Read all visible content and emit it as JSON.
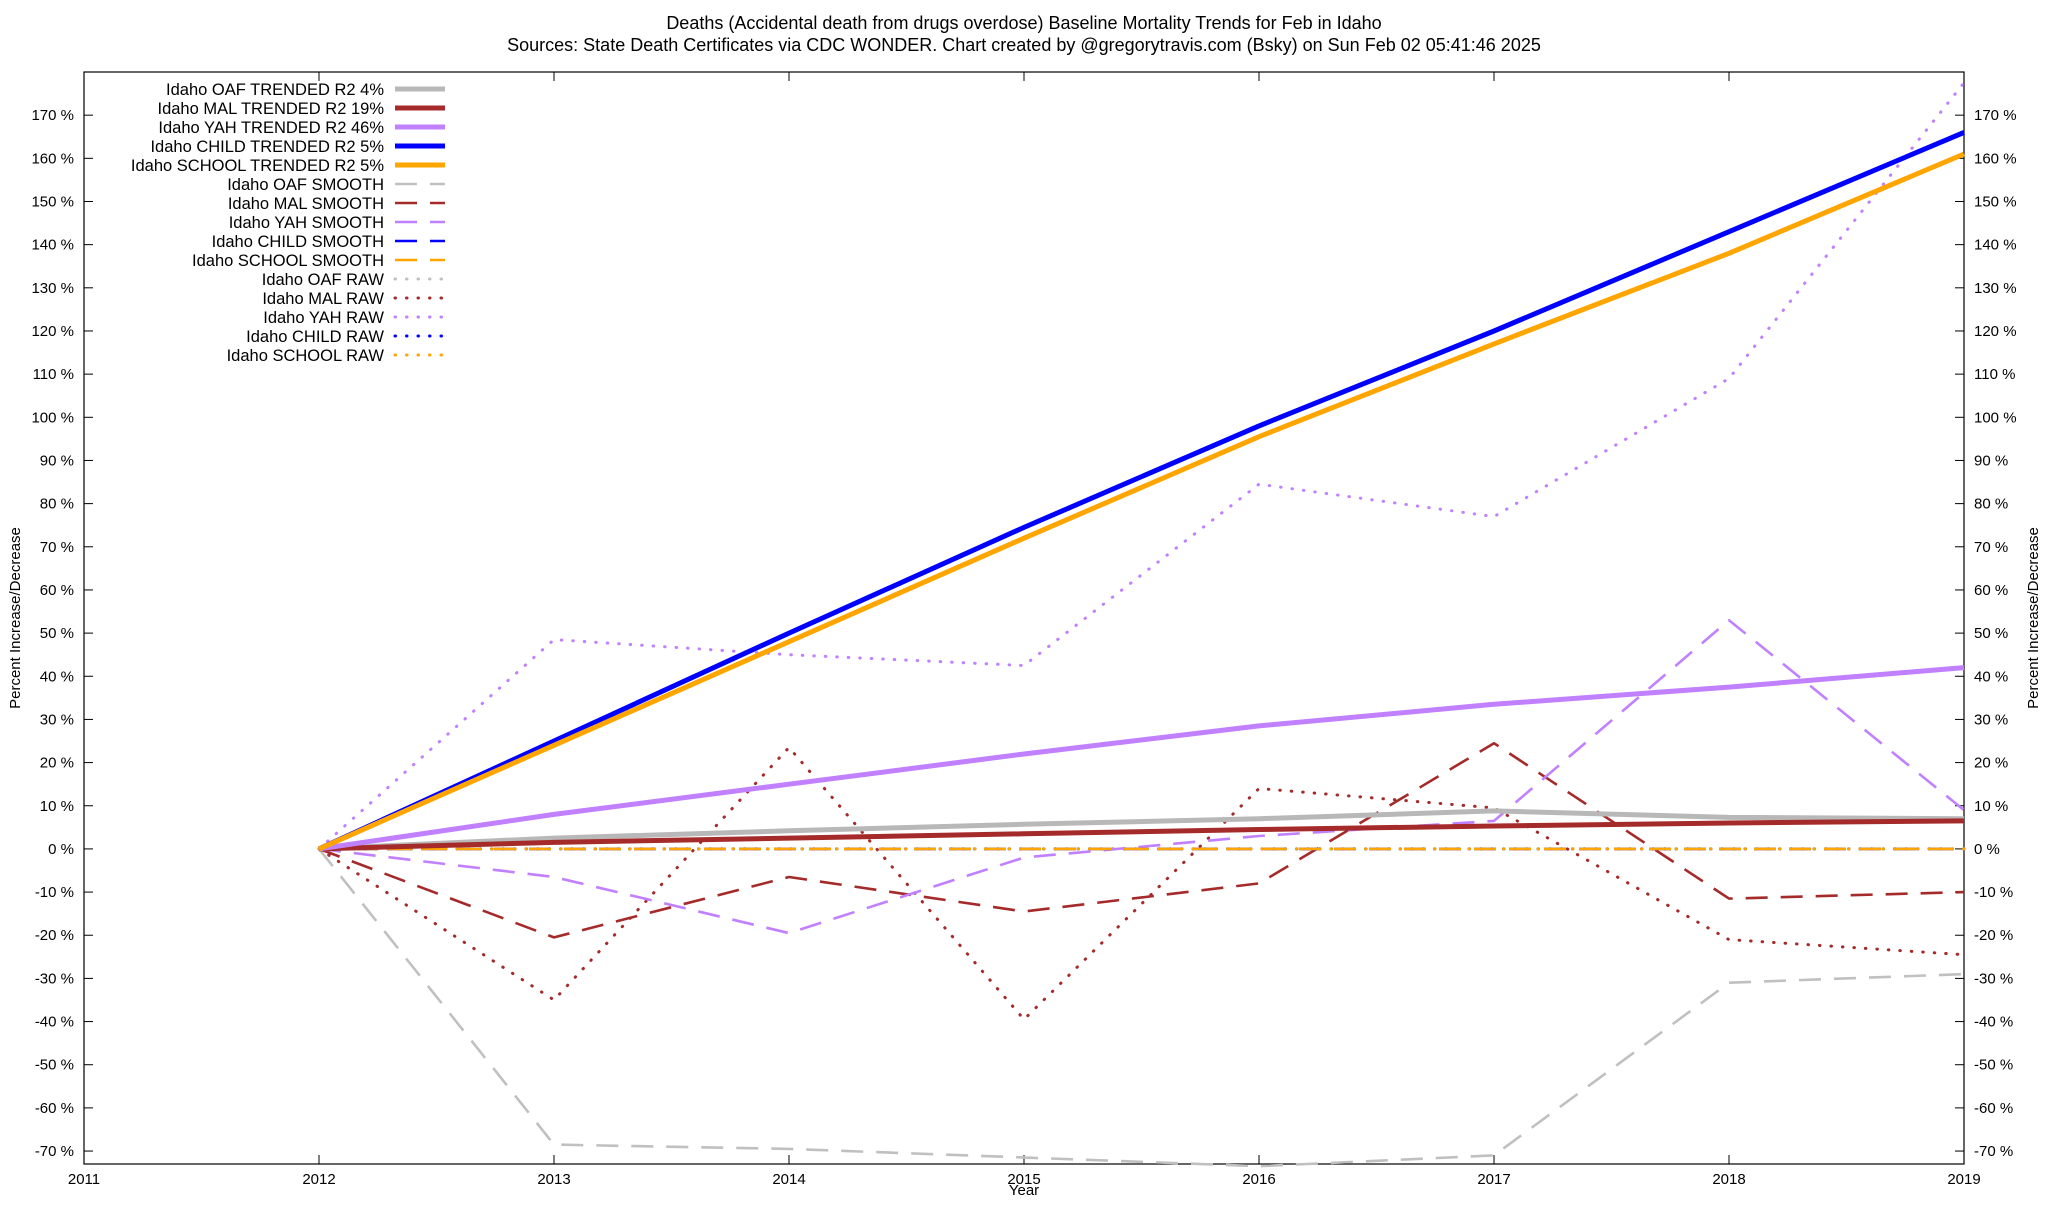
{
  "chart_data": {
    "type": "line",
    "title_line1": "Deaths (Accidental death from drugs overdose)  Baseline Mortality Trends for Feb in Idaho",
    "title_line2": "Sources: State Death Certificates via CDC WONDER.               Chart created by @gregorytravis.com (Bsky) on Sun Feb 02 05:41:46 2025",
    "xlabel": "Year",
    "ylabel_left": "Percent Increase/Decrease",
    "ylabel_right": "Percent Increase/Decrease",
    "xlim": [
      2011,
      2019
    ],
    "ylim": [
      -73,
      180
    ],
    "x_ticks": [
      2011,
      2012,
      2013,
      2014,
      2015,
      2016,
      2017,
      2018,
      2019
    ],
    "x_tick_labels": [
      "2011",
      "2012",
      "2013",
      "2014",
      "2015",
      "2016",
      "2017",
      "2018",
      "2019"
    ],
    "y_ticks": [
      -70,
      -60,
      -50,
      -40,
      -30,
      -20,
      -10,
      0,
      10,
      20,
      30,
      40,
      50,
      60,
      70,
      80,
      90,
      100,
      110,
      120,
      130,
      140,
      150,
      160,
      170
    ],
    "y_tick_labels": [
      "-70 %",
      "-60 %",
      "-50 %",
      "-40 %",
      "-30 %",
      "-20 %",
      "-10 %",
      "0 %",
      "10 %",
      "20 %",
      "30 %",
      "40 %",
      "50 %",
      "60 %",
      "70 %",
      "80 %",
      "90 %",
      "100 %",
      "110 %",
      "120 %",
      "130 %",
      "140 %",
      "150 %",
      "160 %",
      "170 %"
    ],
    "grid": false,
    "legend_position": "top-left",
    "x": [
      2012,
      2013,
      2014,
      2015,
      2016,
      2017,
      2018,
      2019
    ],
    "series": [
      {
        "name": "Idaho OAF TRENDED R2   4%",
        "style": "solid",
        "color": "#b8b8b8",
        "values": [
          0,
          2.5,
          4.2,
          5.7,
          7,
          8.8,
          7.3,
          7
        ]
      },
      {
        "name": "Idaho MAL TRENDED R2  19%",
        "style": "solid",
        "color": "#a52a2a",
        "values": [
          0,
          1.5,
          2.5,
          3.5,
          4.5,
          5.3,
          6.0,
          6.5
        ]
      },
      {
        "name": "Idaho YAH TRENDED R2  46%",
        "style": "solid",
        "color": "#c080ff",
        "values": [
          0,
          8,
          15,
          22,
          28.5,
          33.5,
          37.5,
          42
        ]
      },
      {
        "name": "Idaho CHILD TRENDED R2   5%",
        "style": "solid",
        "color": "#0000ff",
        "values": [
          0,
          25,
          50,
          74.5,
          98,
          120,
          143,
          166
        ]
      },
      {
        "name": "Idaho SCHOOL TRENDED R2   5%",
        "style": "solid",
        "color": "#ffa500",
        "values": [
          0,
          24,
          48,
          72,
          95.5,
          117,
          138,
          161
        ]
      },
      {
        "name": "Idaho OAF SMOOTH",
        "style": "dash",
        "color": "#c0c0c0",
        "values": [
          0,
          -68.5,
          -69.5,
          -71.5,
          -73.5,
          -71,
          -31,
          -29
        ]
      },
      {
        "name": "Idaho MAL SMOOTH",
        "style": "dash",
        "color": "#a52a2a",
        "values": [
          0,
          -20.5,
          -6.5,
          -14.5,
          -8,
          24.5,
          -11.5,
          -10
        ]
      },
      {
        "name": "Idaho YAH SMOOTH",
        "style": "dash",
        "color": "#c080ff",
        "values": [
          0,
          -6.5,
          -19.5,
          -2,
          3,
          6.5,
          53,
          9
        ]
      },
      {
        "name": "Idaho CHILD SMOOTH",
        "style": "dash",
        "color": "#0000ff",
        "values": [
          0,
          0,
          0,
          0,
          0,
          0,
          0,
          0
        ]
      },
      {
        "name": "Idaho SCHOOL SMOOTH",
        "style": "dash",
        "color": "#ffa500",
        "values": [
          0,
          0,
          0,
          0,
          0,
          0,
          0,
          0
        ]
      },
      {
        "name": "Idaho OAF RAW",
        "style": "dot",
        "color": "#c0c0c0",
        "values": [
          0,
          0,
          0,
          0,
          0,
          0,
          0,
          0
        ]
      },
      {
        "name": "Idaho MAL RAW",
        "style": "dot",
        "color": "#a52a2a",
        "values": [
          0,
          -35,
          23.5,
          -39.5,
          14,
          9.5,
          -21,
          -24.5
        ]
      },
      {
        "name": "Idaho YAH RAW",
        "style": "dot",
        "color": "#c080ff",
        "values": [
          0,
          48.5,
          45,
          42.5,
          84.5,
          77,
          109,
          177.5
        ]
      },
      {
        "name": "Idaho CHILD RAW",
        "style": "dot",
        "color": "#0000ff",
        "values": [
          0,
          0,
          0,
          0,
          0,
          0,
          0,
          0
        ]
      },
      {
        "name": "Idaho SCHOOL RAW",
        "style": "dot",
        "color": "#ffa500",
        "values": [
          0,
          0,
          0,
          0,
          0,
          0,
          0,
          0
        ]
      }
    ]
  }
}
